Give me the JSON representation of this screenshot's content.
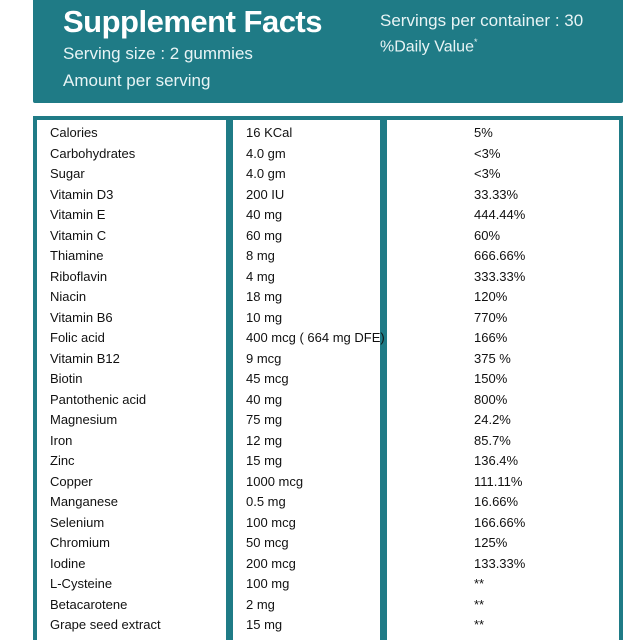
{
  "header": {
    "title": "Supplement Facts",
    "serving_size": "Serving size : 2 gummies",
    "amount_per_serving": "Amount per serving",
    "servings_per_container": "Servings per container : 30",
    "daily_value": "%Daily Value",
    "daily_value_mark": "*"
  },
  "rows": [
    {
      "name": "Calories",
      "amount": "16 KCal",
      "dv": "5%"
    },
    {
      "name": "Carbohydrates",
      "amount": "4.0 gm",
      "dv": "<3%"
    },
    {
      "name": "Sugar",
      "amount": "4.0 gm",
      "dv": "<3%"
    },
    {
      "name": "Vitamin D3",
      "amount": "200 IU",
      "dv": "33.33%"
    },
    {
      "name": "Vitamin E",
      "amount": "40 mg",
      "dv": "444.44%"
    },
    {
      "name": "Vitamin C",
      "amount": "60 mg",
      "dv": "60%"
    },
    {
      "name": "Thiamine",
      "amount": "8 mg",
      "dv": "666.66%"
    },
    {
      "name": "Riboflavin",
      "amount": "4 mg",
      "dv": "333.33%"
    },
    {
      "name": "Niacin",
      "amount": "18 mg",
      "dv": "120%"
    },
    {
      "name": "Vitamin B6",
      "amount": "10 mg",
      "dv": "770%"
    },
    {
      "name": "Folic acid",
      "amount": "400 mcg ( 664 mg DFE)",
      "dv": "166%"
    },
    {
      "name": "Vitamin B12",
      "amount": "9 mcg",
      "dv": "375 %"
    },
    {
      "name": "Biotin",
      "amount": "45 mcg",
      "dv": "150%"
    },
    {
      "name": "Pantothenic acid",
      "amount": "40 mg",
      "dv": "800%"
    },
    {
      "name": "Magnesium",
      "amount": "75 mg",
      "dv": "24.2%"
    },
    {
      "name": "Iron",
      "amount": "12 mg",
      "dv": "85.7%"
    },
    {
      "name": "Zinc",
      "amount": "15 mg",
      "dv": "136.4%"
    },
    {
      "name": "Copper",
      "amount": "1000 mcg",
      "dv": "111.11%"
    },
    {
      "name": "Manganese",
      "amount": "0.5 mg",
      "dv": "16.66%"
    },
    {
      "name": "Selenium",
      "amount": "100 mcg",
      "dv": "166.66%"
    },
    {
      "name": "Chromium",
      "amount": "50 mcg",
      "dv": "125%"
    },
    {
      "name": "Iodine",
      "amount": "200 mcg",
      "dv": "133.33%"
    },
    {
      "name": "L-Cysteine",
      "amount": "100 mg",
      "dv": "**"
    },
    {
      "name": "Betacarotene",
      "amount": "2 mg",
      "dv": "**"
    },
    {
      "name": "Grape seed extract",
      "amount": "15 mg",
      "dv": "**"
    }
  ],
  "colors": {
    "accent": "#1f7b86"
  }
}
